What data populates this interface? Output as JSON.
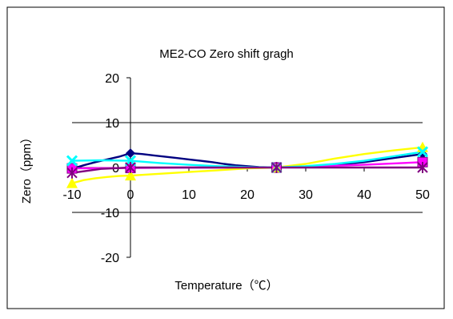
{
  "chart_data": {
    "type": "line",
    "title": "ME2-CO Zero shift gragh",
    "xlabel": "Temperature（℃）",
    "ylabel": "Zero（ppm）",
    "x_ticks": [
      "-10",
      "0",
      "10",
      "20",
      "30",
      "40",
      "50"
    ],
    "y_ticks": [
      "20",
      "10",
      "0",
      "-10",
      "-20"
    ],
    "x_tick_values": [
      -10,
      0,
      10,
      20,
      30,
      40,
      50
    ],
    "y_tick_values": [
      20,
      10,
      0,
      -10,
      -20
    ],
    "xlim": [
      -10,
      50
    ],
    "ylim": [
      -20,
      20
    ],
    "grid": "horizontal major at 10 and -10",
    "legend": "none",
    "series": [
      {
        "color": "#000080",
        "marker": "diamond",
        "marker_x": [
          0,
          25,
          50
        ],
        "marker_y": [
          3.2,
          0,
          3
        ],
        "x": [
          -10,
          -8,
          -6,
          -4,
          -2,
          0,
          2,
          4,
          6,
          8,
          10,
          12,
          14,
          16,
          18,
          20,
          22,
          25,
          30,
          35,
          40,
          45,
          50
        ],
        "y": [
          -0.3,
          0.5,
          1.2,
          1.8,
          2.4,
          3.2,
          3.0,
          2.7,
          2.4,
          2.1,
          1.8,
          1.5,
          1.2,
          0.8,
          0.5,
          0.3,
          0.1,
          0,
          0.2,
          0.6,
          1.2,
          2.1,
          3.0
        ]
      },
      {
        "color": "#ff00ff",
        "marker": "square",
        "marker_x": [
          -10,
          0,
          25,
          50
        ],
        "marker_y": [
          -0.2,
          -0.1,
          0,
          1.2
        ],
        "x": [
          -10,
          0,
          10,
          20,
          25,
          30,
          40,
          50
        ],
        "y": [
          -0.2,
          -0.1,
          0,
          0,
          0,
          0.2,
          0.6,
          1.2
        ]
      },
      {
        "color": "#ffff00",
        "marker": "triangle",
        "marker_x": [
          -10,
          0,
          25,
          50
        ],
        "marker_y": [
          -3.5,
          -1.8,
          0,
          4.5
        ],
        "x": [
          -10,
          -8,
          -6,
          -4,
          -2,
          0,
          5,
          10,
          15,
          20,
          25,
          30,
          35,
          40,
          45,
          50
        ],
        "y": [
          -3.5,
          -2.8,
          -2.4,
          -2.1,
          -1.9,
          -1.8,
          -1.4,
          -1.0,
          -0.6,
          -0.2,
          0,
          0.8,
          2.0,
          3.0,
          3.8,
          4.5
        ]
      },
      {
        "color": "#00ffff",
        "marker": "x",
        "marker_x": [
          -10,
          0,
          25,
          50
        ],
        "marker_y": [
          1.5,
          1.5,
          0,
          3.5
        ],
        "x": [
          -10,
          -5,
          0,
          5,
          10,
          15,
          20,
          25,
          30,
          35,
          40,
          45,
          50
        ],
        "y": [
          1.5,
          1.6,
          1.5,
          1.0,
          0.6,
          0.3,
          0.1,
          0,
          0.3,
          0.8,
          1.5,
          2.5,
          3.5
        ]
      },
      {
        "color": "#800080",
        "marker": "star",
        "marker_x": [
          -10,
          0,
          25,
          50
        ],
        "marker_y": [
          -1.2,
          0,
          0,
          0
        ],
        "x": [
          -10,
          -5,
          0,
          10,
          20,
          25,
          30,
          40,
          50
        ],
        "y": [
          -1.2,
          -0.3,
          0,
          0,
          0,
          0,
          0,
          0,
          0
        ]
      }
    ]
  }
}
